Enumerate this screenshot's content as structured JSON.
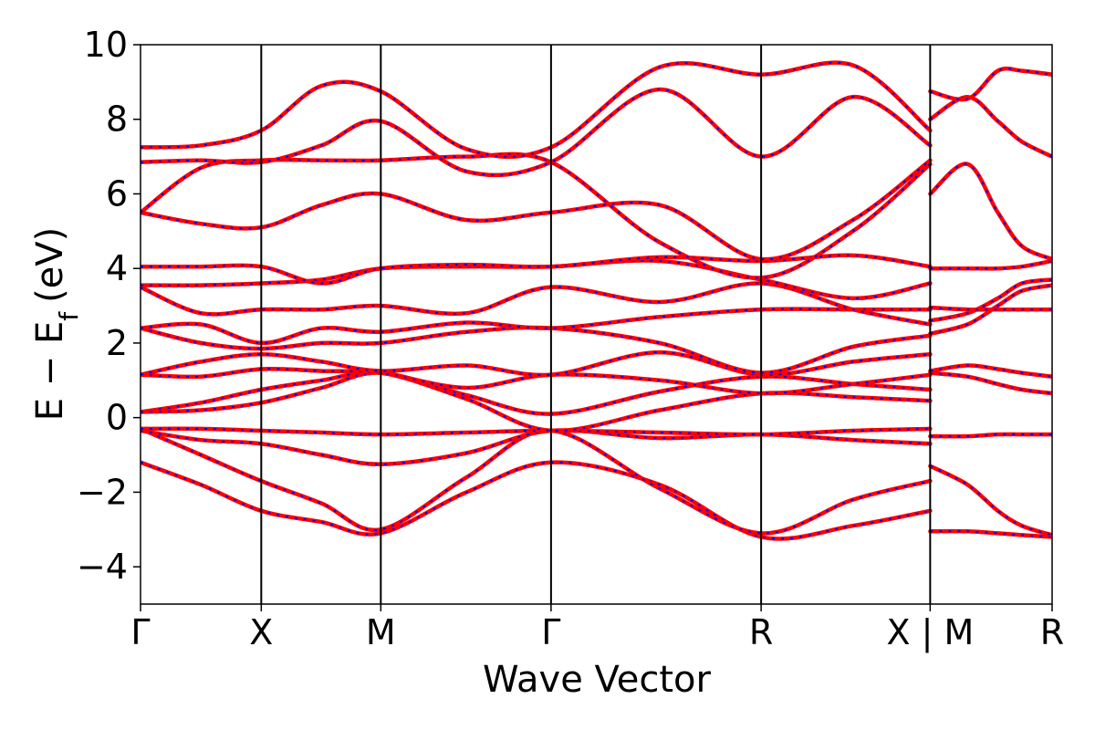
{
  "chart_data": {
    "type": "line",
    "title": "",
    "xlabel": "Wave Vector",
    "ylabel_main": "E − E",
    "ylabel_sub": "f",
    "ylabel_unit": "(eV)",
    "ylim": [
      -5,
      10
    ],
    "yticks": [
      -4,
      -2,
      0,
      2,
      4,
      6,
      8,
      10
    ],
    "ytick_labels": [
      "−4",
      "−2",
      "0",
      "2",
      "4",
      "6",
      "8",
      "10"
    ],
    "xlim": [
      0,
      7.55
    ],
    "kpoints": [
      {
        "label": "Γ",
        "x": 0
      },
      {
        "label": "X",
        "x": 1
      },
      {
        "label": "M",
        "x": 1.99
      },
      {
        "label": "Γ",
        "x": 3.4
      },
      {
        "label": "R",
        "x": 5.14
      },
      {
        "label": "X | M",
        "x": 6.54
      },
      {
        "label": "R",
        "x": 7.55
      }
    ],
    "colors": {
      "band": "#ff0000",
      "overlay": "#0000ff",
      "frame": "#000000"
    },
    "grid": false,
    "series": [
      {
        "x": [
          0,
          0.5,
          1,
          1.5,
          1.99,
          2.7,
          3.4,
          4.3,
          5.14,
          5.9,
          6.54
        ],
        "y": [
          -1.2,
          -1.8,
          -2.5,
          -2.8,
          -3.1,
          -2.0,
          -1.2,
          -1.8,
          -3.2,
          -2.9,
          -2.5
        ]
      },
      {
        "x": [
          0,
          0.5,
          1,
          1.5,
          1.99,
          2.7,
          3.4,
          4.3,
          5.14,
          5.9,
          6.54
        ],
        "y": [
          -0.3,
          -1.0,
          -1.7,
          -2.3,
          -3.0,
          -1.6,
          -0.35,
          -1.9,
          -3.1,
          -2.2,
          -1.7
        ]
      },
      {
        "x": [
          0,
          0.5,
          1,
          1.5,
          1.99,
          2.7,
          3.4,
          4.3,
          5.14,
          5.9,
          6.54
        ],
        "y": [
          -0.35,
          -0.6,
          -0.7,
          -1.0,
          -1.25,
          -0.95,
          -0.35,
          -0.55,
          -0.45,
          -0.6,
          -0.7
        ]
      },
      {
        "x": [
          0,
          0.5,
          1,
          1.5,
          1.99,
          2.7,
          3.4,
          4.3,
          5.14,
          5.9,
          6.54
        ],
        "y": [
          -0.3,
          -0.3,
          -0.35,
          -0.4,
          -0.45,
          -0.4,
          -0.35,
          -0.4,
          -0.45,
          -0.35,
          -0.3
        ]
      },
      {
        "x": [
          0,
          0.5,
          1,
          1.5,
          1.99,
          2.7,
          3.4,
          4.3,
          5.14,
          5.9,
          6.54
        ],
        "y": [
          0.15,
          0.4,
          0.75,
          1.0,
          1.2,
          0.5,
          -0.35,
          0.2,
          0.65,
          0.55,
          0.45
        ]
      },
      {
        "x": [
          0,
          0.5,
          1,
          1.5,
          1.99,
          2.7,
          3.4,
          4.3,
          5.14,
          5.9,
          6.54
        ],
        "y": [
          0.15,
          0.2,
          0.4,
          0.8,
          1.2,
          0.6,
          0.1,
          0.7,
          1.1,
          0.9,
          0.75
        ]
      },
      {
        "x": [
          0,
          0.5,
          1,
          1.5,
          1.99,
          2.7,
          3.4,
          4.3,
          5.14,
          5.9,
          6.54
        ],
        "y": [
          1.15,
          1.1,
          1.3,
          1.25,
          1.2,
          0.8,
          1.15,
          1.0,
          0.65,
          0.9,
          1.15
        ]
      },
      {
        "x": [
          0,
          0.5,
          1,
          1.5,
          1.99,
          2.7,
          3.4,
          4.3,
          5.14,
          5.9,
          6.54
        ],
        "y": [
          1.15,
          1.5,
          1.7,
          1.5,
          1.25,
          1.4,
          1.15,
          1.75,
          1.15,
          1.5,
          1.7
        ]
      },
      {
        "x": [
          0,
          0.5,
          1,
          1.5,
          1.99,
          2.7,
          3.4,
          4.3,
          5.14,
          5.9,
          6.54
        ],
        "y": [
          2.4,
          2.0,
          1.85,
          2.0,
          2.0,
          2.3,
          2.4,
          2.0,
          1.2,
          1.9,
          2.2
        ]
      },
      {
        "x": [
          0,
          0.5,
          1,
          1.5,
          1.99,
          2.7,
          3.4,
          4.3,
          5.14,
          5.9,
          6.54
        ],
        "y": [
          2.4,
          2.5,
          2.0,
          2.4,
          2.3,
          2.55,
          2.4,
          2.7,
          2.9,
          2.9,
          2.9
        ]
      },
      {
        "x": [
          0,
          0.5,
          1,
          1.5,
          1.99,
          2.7,
          3.4,
          4.3,
          5.14,
          5.9,
          6.54
        ],
        "y": [
          3.5,
          2.8,
          2.9,
          2.9,
          3.0,
          2.8,
          3.5,
          3.1,
          3.6,
          2.9,
          2.5
        ]
      },
      {
        "x": [
          0,
          0.5,
          1,
          1.5,
          1.99,
          2.7,
          3.4,
          4.3,
          5.14,
          5.9,
          6.54
        ],
        "y": [
          3.55,
          3.55,
          3.6,
          3.7,
          4.0,
          4.05,
          4.05,
          4.2,
          3.7,
          3.2,
          3.6
        ]
      },
      {
        "x": [
          0,
          0.5,
          1,
          1.5,
          1.99,
          2.7,
          3.4,
          4.3,
          5.14,
          5.9,
          6.54
        ],
        "y": [
          4.05,
          4.05,
          4.05,
          3.6,
          4.0,
          4.1,
          4.05,
          4.3,
          4.2,
          4.35,
          4.05
        ]
      },
      {
        "x": [
          0,
          0.5,
          1,
          1.5,
          1.99,
          2.7,
          3.4,
          4.3,
          5.14,
          5.9,
          6.54
        ],
        "y": [
          5.5,
          5.2,
          5.1,
          5.7,
          6.0,
          5.3,
          5.5,
          5.7,
          4.25,
          5.3,
          6.9
        ]
      },
      {
        "x": [
          0,
          0.5,
          1,
          1.5,
          1.99,
          2.7,
          3.4,
          4.3,
          5.14,
          5.9,
          6.54
        ],
        "y": [
          5.5,
          6.7,
          6.9,
          6.9,
          6.9,
          7.0,
          6.85,
          4.7,
          3.75,
          5.0,
          6.8
        ]
      },
      {
        "x": [
          0,
          0.5,
          1,
          1.5,
          1.99,
          2.7,
          3.4,
          4.3,
          5.14,
          5.9,
          6.54
        ],
        "y": [
          6.85,
          6.9,
          6.85,
          7.3,
          7.95,
          6.6,
          6.85,
          8.8,
          7.0,
          8.6,
          7.3
        ]
      },
      {
        "x": [
          0,
          0.5,
          1,
          1.5,
          1.99,
          2.7,
          3.4,
          4.3,
          5.14,
          5.9,
          6.54
        ],
        "y": [
          7.25,
          7.3,
          7.7,
          8.9,
          8.75,
          7.2,
          7.25,
          9.4,
          9.2,
          9.45,
          7.7
        ]
      },
      {
        "x": [
          6.54,
          6.85,
          7.1,
          7.3,
          7.55
        ],
        "y": [
          -3.05,
          -3.05,
          -3.1,
          -3.15,
          -3.2
        ]
      },
      {
        "x": [
          6.54,
          6.85,
          7.1,
          7.3,
          7.55
        ],
        "y": [
          -1.3,
          -1.8,
          -2.5,
          -2.9,
          -3.15
        ]
      },
      {
        "x": [
          6.54,
          6.85,
          7.1,
          7.3,
          7.55
        ],
        "y": [
          -0.5,
          -0.5,
          -0.45,
          -0.45,
          -0.45
        ]
      },
      {
        "x": [
          6.54,
          6.85,
          7.1,
          7.3,
          7.55
        ],
        "y": [
          1.2,
          1.1,
          0.9,
          0.75,
          0.65
        ]
      },
      {
        "x": [
          6.54,
          6.85,
          7.1,
          7.3,
          7.55
        ],
        "y": [
          1.25,
          1.4,
          1.3,
          1.2,
          1.1
        ]
      },
      {
        "x": [
          6.54,
          6.85,
          7.1,
          7.3,
          7.55
        ],
        "y": [
          2.25,
          2.5,
          3.0,
          3.4,
          3.55
        ]
      },
      {
        "x": [
          6.54,
          6.85,
          7.1,
          7.3,
          7.55
        ],
        "y": [
          2.6,
          2.8,
          3.2,
          3.6,
          3.7
        ]
      },
      {
        "x": [
          6.54,
          6.85,
          7.1,
          7.3,
          7.55
        ],
        "y": [
          2.95,
          2.9,
          2.9,
          2.9,
          2.9
        ]
      },
      {
        "x": [
          6.54,
          6.85,
          7.1,
          7.3,
          7.55
        ],
        "y": [
          4.0,
          4.0,
          4.0,
          4.05,
          4.2
        ]
      },
      {
        "x": [
          6.54,
          6.85,
          7.1,
          7.3,
          7.55
        ],
        "y": [
          6.0,
          6.8,
          5.5,
          4.6,
          4.25
        ]
      },
      {
        "x": [
          6.54,
          6.85,
          7.1,
          7.3,
          7.55
        ],
        "y": [
          8.0,
          8.6,
          7.95,
          7.4,
          7.0
        ]
      },
      {
        "x": [
          6.54,
          6.85,
          7.1,
          7.3,
          7.55
        ],
        "y": [
          8.75,
          8.55,
          9.3,
          9.3,
          9.2
        ]
      }
    ]
  }
}
